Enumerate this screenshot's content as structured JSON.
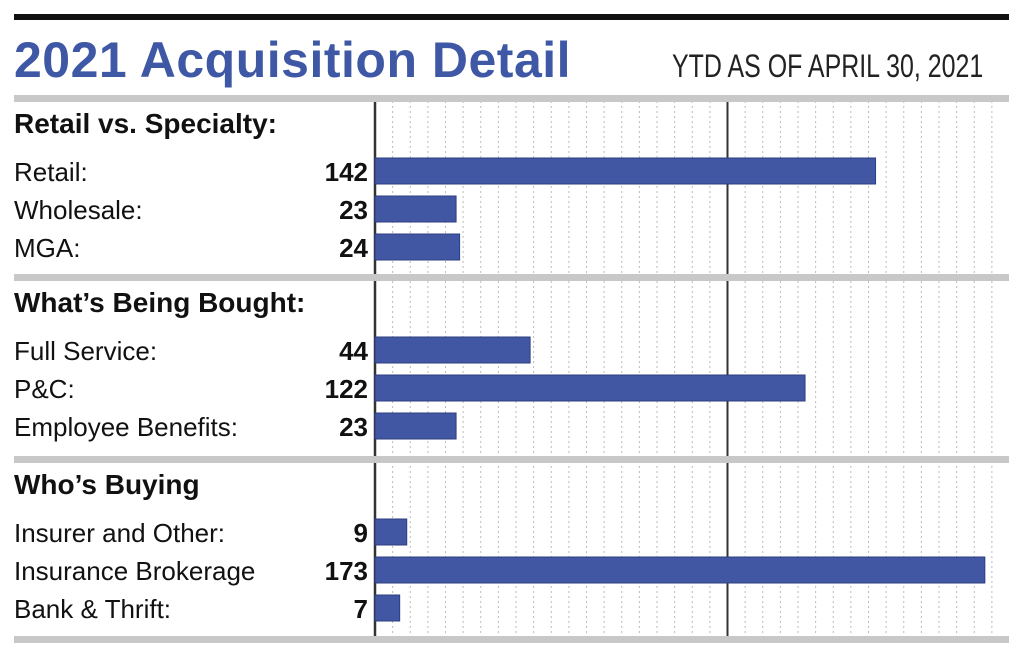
{
  "title": "2021 Acquisition Detail",
  "subtitle": "YTD AS OF APRIL 30, 2021",
  "colors": {
    "title": "#3f58a5",
    "bar": "#4157a3",
    "separator": "#c8c8c8",
    "axis": "#333333",
    "grid": "#bbbbbb"
  },
  "chart_data": {
    "type": "bar",
    "orientation": "horizontal",
    "title": "2021 Acquisition Detail",
    "subtitle": "YTD AS OF APRIL 30, 2021",
    "xlim": [
      0,
      176
    ],
    "grid": true,
    "groups": [
      {
        "heading": "Retail vs. Specialty:",
        "items": [
          {
            "label": "Retail:",
            "value": 142
          },
          {
            "label": "Wholesale:",
            "value": 23
          },
          {
            "label": "MGA:",
            "value": 24
          }
        ]
      },
      {
        "heading": "What’s Being Bought:",
        "items": [
          {
            "label": "Full Service:",
            "value": 44
          },
          {
            "label": "P&C:",
            "value": 122
          },
          {
            "label": "Employee Benefits:",
            "value": 23
          }
        ]
      },
      {
        "heading": "Who’s Buying",
        "items": [
          {
            "label": "Insurer and Other:",
            "value": 9
          },
          {
            "label": "Insurance Brokerage",
            "value": 173
          },
          {
            "label": "Bank & Thrift:",
            "value": 7
          }
        ]
      }
    ]
  }
}
